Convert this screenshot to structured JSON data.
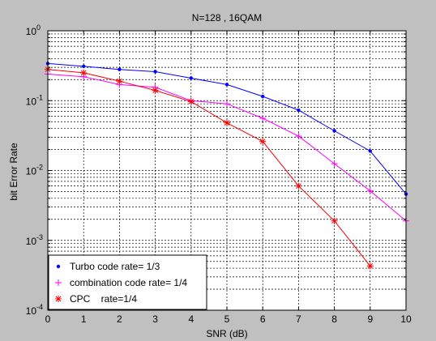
{
  "chart_data": {
    "type": "line",
    "title": "N=128   , 16QAM",
    "xlabel": "SNR (dB)",
    "ylabel": "bit Error Rate",
    "xlim": [
      0,
      10
    ],
    "ylim": [
      0.0001,
      1
    ],
    "yscale": "log",
    "grid": true,
    "legend_position": "bottom-left",
    "x_ticks": [
      "0",
      "1",
      "2",
      "3",
      "4",
      "5",
      "6",
      "7",
      "8",
      "9",
      "10"
    ],
    "y_ticks": [
      {
        "base": "10",
        "exp": "0",
        "value": 1
      },
      {
        "base": "10",
        "exp": "-1",
        "value": 0.1
      },
      {
        "base": "10",
        "exp": "-2",
        "value": 0.01
      },
      {
        "base": "10",
        "exp": "-3",
        "value": 0.001
      },
      {
        "base": "10",
        "exp": "-4",
        "value": 0.0001
      }
    ],
    "series": [
      {
        "name": "Turbo code rate= 1/3",
        "color": "#0000ff",
        "marker": "dot",
        "x": [
          0,
          1,
          2,
          3,
          4,
          5,
          6,
          7,
          8,
          9,
          10
        ],
        "y": [
          0.34,
          0.31,
          0.28,
          0.26,
          0.21,
          0.17,
          0.115,
          0.073,
          0.037,
          0.019,
          0.0046
        ]
      },
      {
        "name": "combination code rate= 1/4",
        "color": "#ff00ff",
        "marker": "plus",
        "x": [
          0,
          1,
          2,
          3,
          4,
          5,
          6,
          7,
          8,
          9,
          10
        ],
        "y": [
          0.24,
          0.22,
          0.17,
          0.155,
          0.1,
          0.09,
          0.056,
          0.031,
          0.0125,
          0.0051,
          0.0019
        ]
      },
      {
        "name": "CPC    rate=1/4",
        "color": "#ff0000",
        "marker": "star",
        "x": [
          0,
          1,
          2,
          3,
          4,
          5,
          6,
          7,
          8,
          9
        ],
        "y": [
          0.28,
          0.25,
          0.19,
          0.14,
          0.097,
          0.048,
          0.026,
          0.006,
          0.0019,
          0.00043
        ]
      }
    ]
  }
}
